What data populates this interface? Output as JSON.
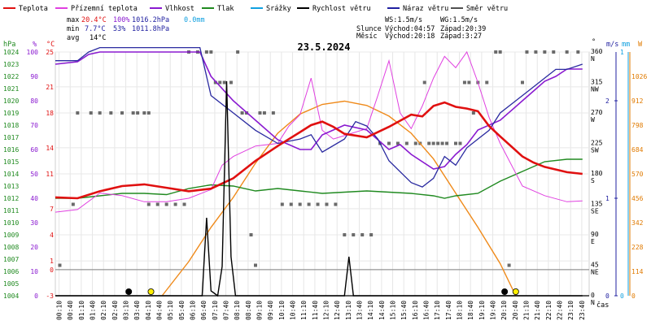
{
  "chart_data": {
    "type": "line",
    "title": "23.5.2024",
    "legend": [
      {
        "key": "temp",
        "name": "Teplota",
        "color": "#e01010"
      },
      {
        "key": "feels",
        "name": "Přízemní teplota",
        "color": "#e040e0"
      },
      {
        "key": "humidity",
        "name": "Vlhkost",
        "color": "#8a1ad0"
      },
      {
        "key": "pressure",
        "name": "Tlak",
        "color": "#208a20"
      },
      {
        "key": "rain",
        "name": "Srážky",
        "color": "#10a0e0"
      },
      {
        "key": "wind",
        "name": "Rychlost větru",
        "color": "#000000"
      },
      {
        "key": "gust",
        "name": "Náraz větru",
        "color": "#2020a0"
      },
      {
        "key": "dir",
        "name": "Směr větru",
        "color": "#505050"
      }
    ],
    "stats": {
      "max": {
        "label": "max",
        "temp": "20.4°C",
        "hum": "100%",
        "press": "1016.2hPa",
        "rain": "0.0mm"
      },
      "min": {
        "label": "min",
        "temp": "7.7°C",
        "hum": "53%",
        "press": "1011.8hPa"
      },
      "avg": {
        "label": "avg",
        "temp": "14°C"
      }
    },
    "info": {
      "ws": "WS:1.5m/s",
      "wg": "WG:1.5m/s",
      "sun_label": "Slunce",
      "sunrise": "Východ:04:57",
      "sunset": "Západ:20:39",
      "moon_label": "Měsíc",
      "moonrise": "Východ:20:18",
      "moonset": "Západ:3:27"
    },
    "axes": {
      "hpa_title": "hPa",
      "pct_title": "%",
      "temp_title": "°C",
      "deg_title": "°",
      "ms_title": "m/s",
      "mm_title": "mm",
      "w_title": "W",
      "time_title": "čas",
      "hpa": [
        1004,
        1005,
        1006,
        1007,
        1008,
        1009,
        1010,
        1011,
        1012,
        1013,
        1014,
        1015,
        1016,
        1017,
        1018,
        1019,
        1020,
        1021,
        1022,
        1023,
        1024
      ],
      "pct": [
        0,
        10,
        20,
        30,
        40,
        50,
        60,
        70,
        80,
        90,
        100
      ],
      "temp": [
        -3,
        0,
        1,
        4,
        7,
        11,
        14,
        18,
        21,
        25
      ],
      "temp_range": [
        -3,
        25
      ],
      "dir": [
        {
          "deg": "0",
          "name": "N"
        },
        {
          "deg": "45",
          "name": "NE"
        },
        {
          "deg": "90",
          "name": "E"
        },
        {
          "deg": "135",
          "name": "SE"
        },
        {
          "deg": "180",
          "name": "S"
        },
        {
          "deg": "225",
          "name": "SW"
        },
        {
          "deg": "270",
          "name": "W"
        },
        {
          "deg": "315",
          "name": "NW"
        },
        {
          "deg": "360",
          "name": "N"
        }
      ],
      "ms": [
        "0",
        "1",
        "2"
      ],
      "mm": [
        "0",
        "1"
      ],
      "watts": [
        0,
        114,
        228,
        342,
        456,
        570,
        684,
        798,
        912,
        1026
      ],
      "times": [
        "00:10",
        "00:40",
        "01:10",
        "01:40",
        "02:10",
        "02:40",
        "03:10",
        "03:40",
        "04:10",
        "04:40",
        "05:10",
        "05:40",
        "06:10",
        "06:40",
        "07:10",
        "07:40",
        "08:10",
        "08:40",
        "09:10",
        "09:40",
        "10:10",
        "10:40",
        "11:10",
        "11:40",
        "12:10",
        "12:40",
        "13:10",
        "13:40",
        "14:10",
        "14:40",
        "15:10",
        "15:40",
        "16:10",
        "16:40",
        "17:10",
        "17:40",
        "18:10",
        "18:40",
        "19:10",
        "19:40",
        "20:10",
        "20:40",
        "21:10",
        "21:40",
        "22:10",
        "22:40",
        "23:10",
        "23:40"
      ]
    },
    "series": {
      "temp": [
        [
          0,
          8.3
        ],
        [
          1,
          8.2
        ],
        [
          2,
          9.0
        ],
        [
          3,
          9.6
        ],
        [
          4,
          9.8
        ],
        [
          5,
          9.4
        ],
        [
          6,
          9.0
        ],
        [
          7,
          9.3
        ],
        [
          8,
          10.5
        ],
        [
          9,
          12.5
        ],
        [
          10,
          14.2
        ],
        [
          11,
          15.8
        ],
        [
          11.5,
          16.6
        ],
        [
          12,
          17.0
        ],
        [
          12.5,
          16.4
        ],
        [
          13,
          15.6
        ],
        [
          14,
          15.2
        ],
        [
          15,
          16.4
        ],
        [
          16,
          17.8
        ],
        [
          16.5,
          17.6
        ],
        [
          17,
          18.8
        ],
        [
          17.5,
          19.2
        ],
        [
          18,
          18.7
        ],
        [
          18.5,
          18.5
        ],
        [
          19,
          18.2
        ],
        [
          19.5,
          16.5
        ],
        [
          20,
          15.3
        ],
        [
          21,
          13.0
        ],
        [
          21.5,
          12.3
        ],
        [
          22,
          11.8
        ],
        [
          23,
          11.2
        ],
        [
          23.7,
          11.0
        ]
      ],
      "feels": [
        [
          0,
          6.6
        ],
        [
          1,
          6.9
        ],
        [
          2,
          8.8
        ],
        [
          3,
          8.5
        ],
        [
          4,
          7.8
        ],
        [
          5,
          7.8
        ],
        [
          6,
          8.2
        ],
        [
          7,
          9.2
        ],
        [
          7.5,
          12.0
        ],
        [
          8,
          13.0
        ],
        [
          9,
          14.2
        ],
        [
          10,
          14.5
        ],
        [
          10.5,
          16.5
        ],
        [
          11,
          17.8
        ],
        [
          11.5,
          22.0
        ],
        [
          12,
          16.0
        ],
        [
          12.5,
          15.0
        ],
        [
          13,
          15.4
        ],
        [
          14,
          16.2
        ],
        [
          14.5,
          20.0
        ],
        [
          15,
          24.0
        ],
        [
          15.5,
          18.0
        ],
        [
          16,
          16.2
        ],
        [
          16.5,
          18.8
        ],
        [
          17,
          22.0
        ],
        [
          17.5,
          24.5
        ],
        [
          18,
          23.2
        ],
        [
          18.5,
          25.0
        ],
        [
          19,
          21.5
        ],
        [
          19.5,
          17.5
        ],
        [
          20,
          14.5
        ],
        [
          21,
          9.6
        ],
        [
          22,
          8.5
        ],
        [
          23,
          7.8
        ],
        [
          23.7,
          7.9
        ]
      ],
      "humidity": [
        [
          0,
          95
        ],
        [
          1,
          96
        ],
        [
          1.5,
          99
        ],
        [
          2,
          100
        ],
        [
          3,
          100
        ],
        [
          4,
          100
        ],
        [
          5,
          100
        ],
        [
          6,
          100
        ],
        [
          6.5,
          100
        ],
        [
          7,
          90
        ],
        [
          8,
          80
        ],
        [
          9,
          72
        ],
        [
          10,
          64
        ],
        [
          11,
          60
        ],
        [
          11.5,
          60
        ],
        [
          12,
          66
        ],
        [
          13,
          70
        ],
        [
          14,
          68
        ],
        [
          15,
          60
        ],
        [
          15.5,
          62
        ],
        [
          16,
          58
        ],
        [
          17,
          52
        ],
        [
          17.5,
          53
        ],
        [
          18,
          58
        ],
        [
          18.5,
          62
        ],
        [
          19,
          68
        ],
        [
          20,
          72
        ],
        [
          21,
          80
        ],
        [
          21.5,
          84
        ],
        [
          22,
          88
        ],
        [
          22.5,
          90
        ],
        [
          23,
          93
        ],
        [
          23.7,
          93
        ]
      ],
      "pressure": [
        [
          0,
          1012.0
        ],
        [
          1,
          1012.0
        ],
        [
          2,
          1012.2
        ],
        [
          3,
          1012.4
        ],
        [
          4,
          1012.4
        ],
        [
          5,
          1012.3
        ],
        [
          6,
          1012.8
        ],
        [
          7,
          1013.1
        ],
        [
          8,
          1013.0
        ],
        [
          9,
          1012.6
        ],
        [
          10,
          1012.8
        ],
        [
          11,
          1012.6
        ],
        [
          12,
          1012.4
        ],
        [
          13,
          1012.5
        ],
        [
          14,
          1012.6
        ],
        [
          15,
          1012.5
        ],
        [
          16,
          1012.4
        ],
        [
          17,
          1012.2
        ],
        [
          17.5,
          1012.0
        ],
        [
          18,
          1012.2
        ],
        [
          19,
          1012.4
        ],
        [
          20,
          1013.4
        ],
        [
          21,
          1014.2
        ],
        [
          22,
          1015.0
        ],
        [
          23,
          1015.2
        ],
        [
          23.7,
          1015.2
        ]
      ],
      "gust": [
        [
          0,
          24
        ],
        [
          1,
          24
        ],
        [
          1.5,
          25
        ],
        [
          2,
          25.5
        ],
        [
          3,
          25.5
        ],
        [
          4,
          25.5
        ],
        [
          5,
          25.5
        ],
        [
          6,
          25.5
        ],
        [
          6.5,
          25.5
        ],
        [
          7,
          20
        ],
        [
          8,
          18
        ],
        [
          9,
          16.0
        ],
        [
          10,
          14.5
        ],
        [
          11,
          15.0
        ],
        [
          11.5,
          15.5
        ],
        [
          12,
          13.5
        ],
        [
          13,
          15.0
        ],
        [
          13.5,
          17.0
        ],
        [
          14,
          16.5
        ],
        [
          14.5,
          15.0
        ],
        [
          15,
          12.5
        ],
        [
          16,
          10.0
        ],
        [
          16.5,
          9.5
        ],
        [
          17,
          10.5
        ],
        [
          17.5,
          13.0
        ],
        [
          18,
          12.0
        ],
        [
          18.5,
          14.0
        ],
        [
          19,
          15.0
        ],
        [
          19.5,
          16.0
        ],
        [
          20,
          18.0
        ],
        [
          21,
          20.0
        ],
        [
          21.5,
          21.0
        ],
        [
          22,
          22.0
        ],
        [
          22.5,
          23.0
        ],
        [
          23,
          23.0
        ],
        [
          23.7,
          23.6
        ]
      ],
      "wind": [
        [
          0,
          0
        ],
        [
          6.6,
          0
        ],
        [
          6.8,
          0.8
        ],
        [
          7.0,
          0.05
        ],
        [
          7.3,
          0
        ],
        [
          7.5,
          0.3
        ],
        [
          7.7,
          2.2
        ],
        [
          7.9,
          0.4
        ],
        [
          8.1,
          0
        ],
        [
          12.0,
          0
        ],
        [
          13.0,
          0
        ],
        [
          13.2,
          0.4
        ],
        [
          13.4,
          0
        ],
        [
          20.0,
          0
        ],
        [
          23.7,
          0
        ]
      ],
      "watts": [
        [
          4.8,
          0
        ],
        [
          6,
          160
        ],
        [
          7,
          320
        ],
        [
          8,
          460
        ],
        [
          9,
          620
        ],
        [
          10,
          760
        ],
        [
          11,
          850
        ],
        [
          12,
          895
        ],
        [
          13,
          910
        ],
        [
          14,
          890
        ],
        [
          15,
          840
        ],
        [
          16,
          760
        ],
        [
          17,
          640
        ],
        [
          18,
          480
        ],
        [
          19,
          320
        ],
        [
          20,
          150
        ],
        [
          20.7,
          0
        ]
      ],
      "dir_dots": [
        [
          0.2,
          45
        ],
        [
          0.8,
          135
        ],
        [
          1.0,
          270
        ],
        [
          1.6,
          270
        ],
        [
          2.0,
          270
        ],
        [
          2.5,
          270
        ],
        [
          3.0,
          270
        ],
        [
          3.5,
          270
        ],
        [
          3.7,
          270
        ],
        [
          4.0,
          270
        ],
        [
          4.2,
          270
        ],
        [
          4.2,
          135
        ],
        [
          4.6,
          135
        ],
        [
          5.0,
          135
        ],
        [
          5.4,
          135
        ],
        [
          5.8,
          135
        ],
        [
          6.0,
          360
        ],
        [
          6.4,
          360
        ],
        [
          6.8,
          360
        ],
        [
          7.0,
          360
        ],
        [
          7.2,
          315
        ],
        [
          7.4,
          315
        ],
        [
          7.6,
          315
        ],
        [
          7.9,
          315
        ],
        [
          8.2,
          360
        ],
        [
          8.4,
          270
        ],
        [
          8.6,
          270
        ],
        [
          8.8,
          90
        ],
        [
          9.0,
          45
        ],
        [
          9.2,
          270
        ],
        [
          9.4,
          270
        ],
        [
          9.8,
          270
        ],
        [
          10.2,
          135
        ],
        [
          10.6,
          135
        ],
        [
          11.0,
          135
        ],
        [
          11.4,
          135
        ],
        [
          11.8,
          135
        ],
        [
          12.2,
          135
        ],
        [
          12.6,
          135
        ],
        [
          13.0,
          90
        ],
        [
          13.4,
          90
        ],
        [
          13.8,
          90
        ],
        [
          14.2,
          90
        ],
        [
          14.6,
          225
        ],
        [
          15.0,
          225
        ],
        [
          15.4,
          225
        ],
        [
          15.8,
          225
        ],
        [
          16.2,
          225
        ],
        [
          16.4,
          225
        ],
        [
          16.6,
          315
        ],
        [
          16.8,
          225
        ],
        [
          17.0,
          225
        ],
        [
          17.2,
          225
        ],
        [
          17.4,
          225
        ],
        [
          17.6,
          225
        ],
        [
          18.0,
          225
        ],
        [
          18.2,
          225
        ],
        [
          18.4,
          315
        ],
        [
          18.6,
          315
        ],
        [
          18.8,
          270
        ],
        [
          19.0,
          315
        ],
        [
          19.4,
          315
        ],
        [
          19.8,
          360
        ],
        [
          20.0,
          360
        ],
        [
          20.4,
          45
        ],
        [
          21.0,
          315
        ],
        [
          21.2,
          360
        ],
        [
          21.6,
          360
        ],
        [
          22.0,
          360
        ],
        [
          22.4,
          360
        ],
        [
          23.0,
          360
        ],
        [
          23.5,
          360
        ]
      ],
      "markers": [
        [
          3.3,
          "#000000"
        ],
        [
          4.3,
          "#ffee00"
        ],
        [
          20.2,
          "#000000"
        ],
        [
          20.7,
          "#ffee00"
        ]
      ]
    }
  }
}
